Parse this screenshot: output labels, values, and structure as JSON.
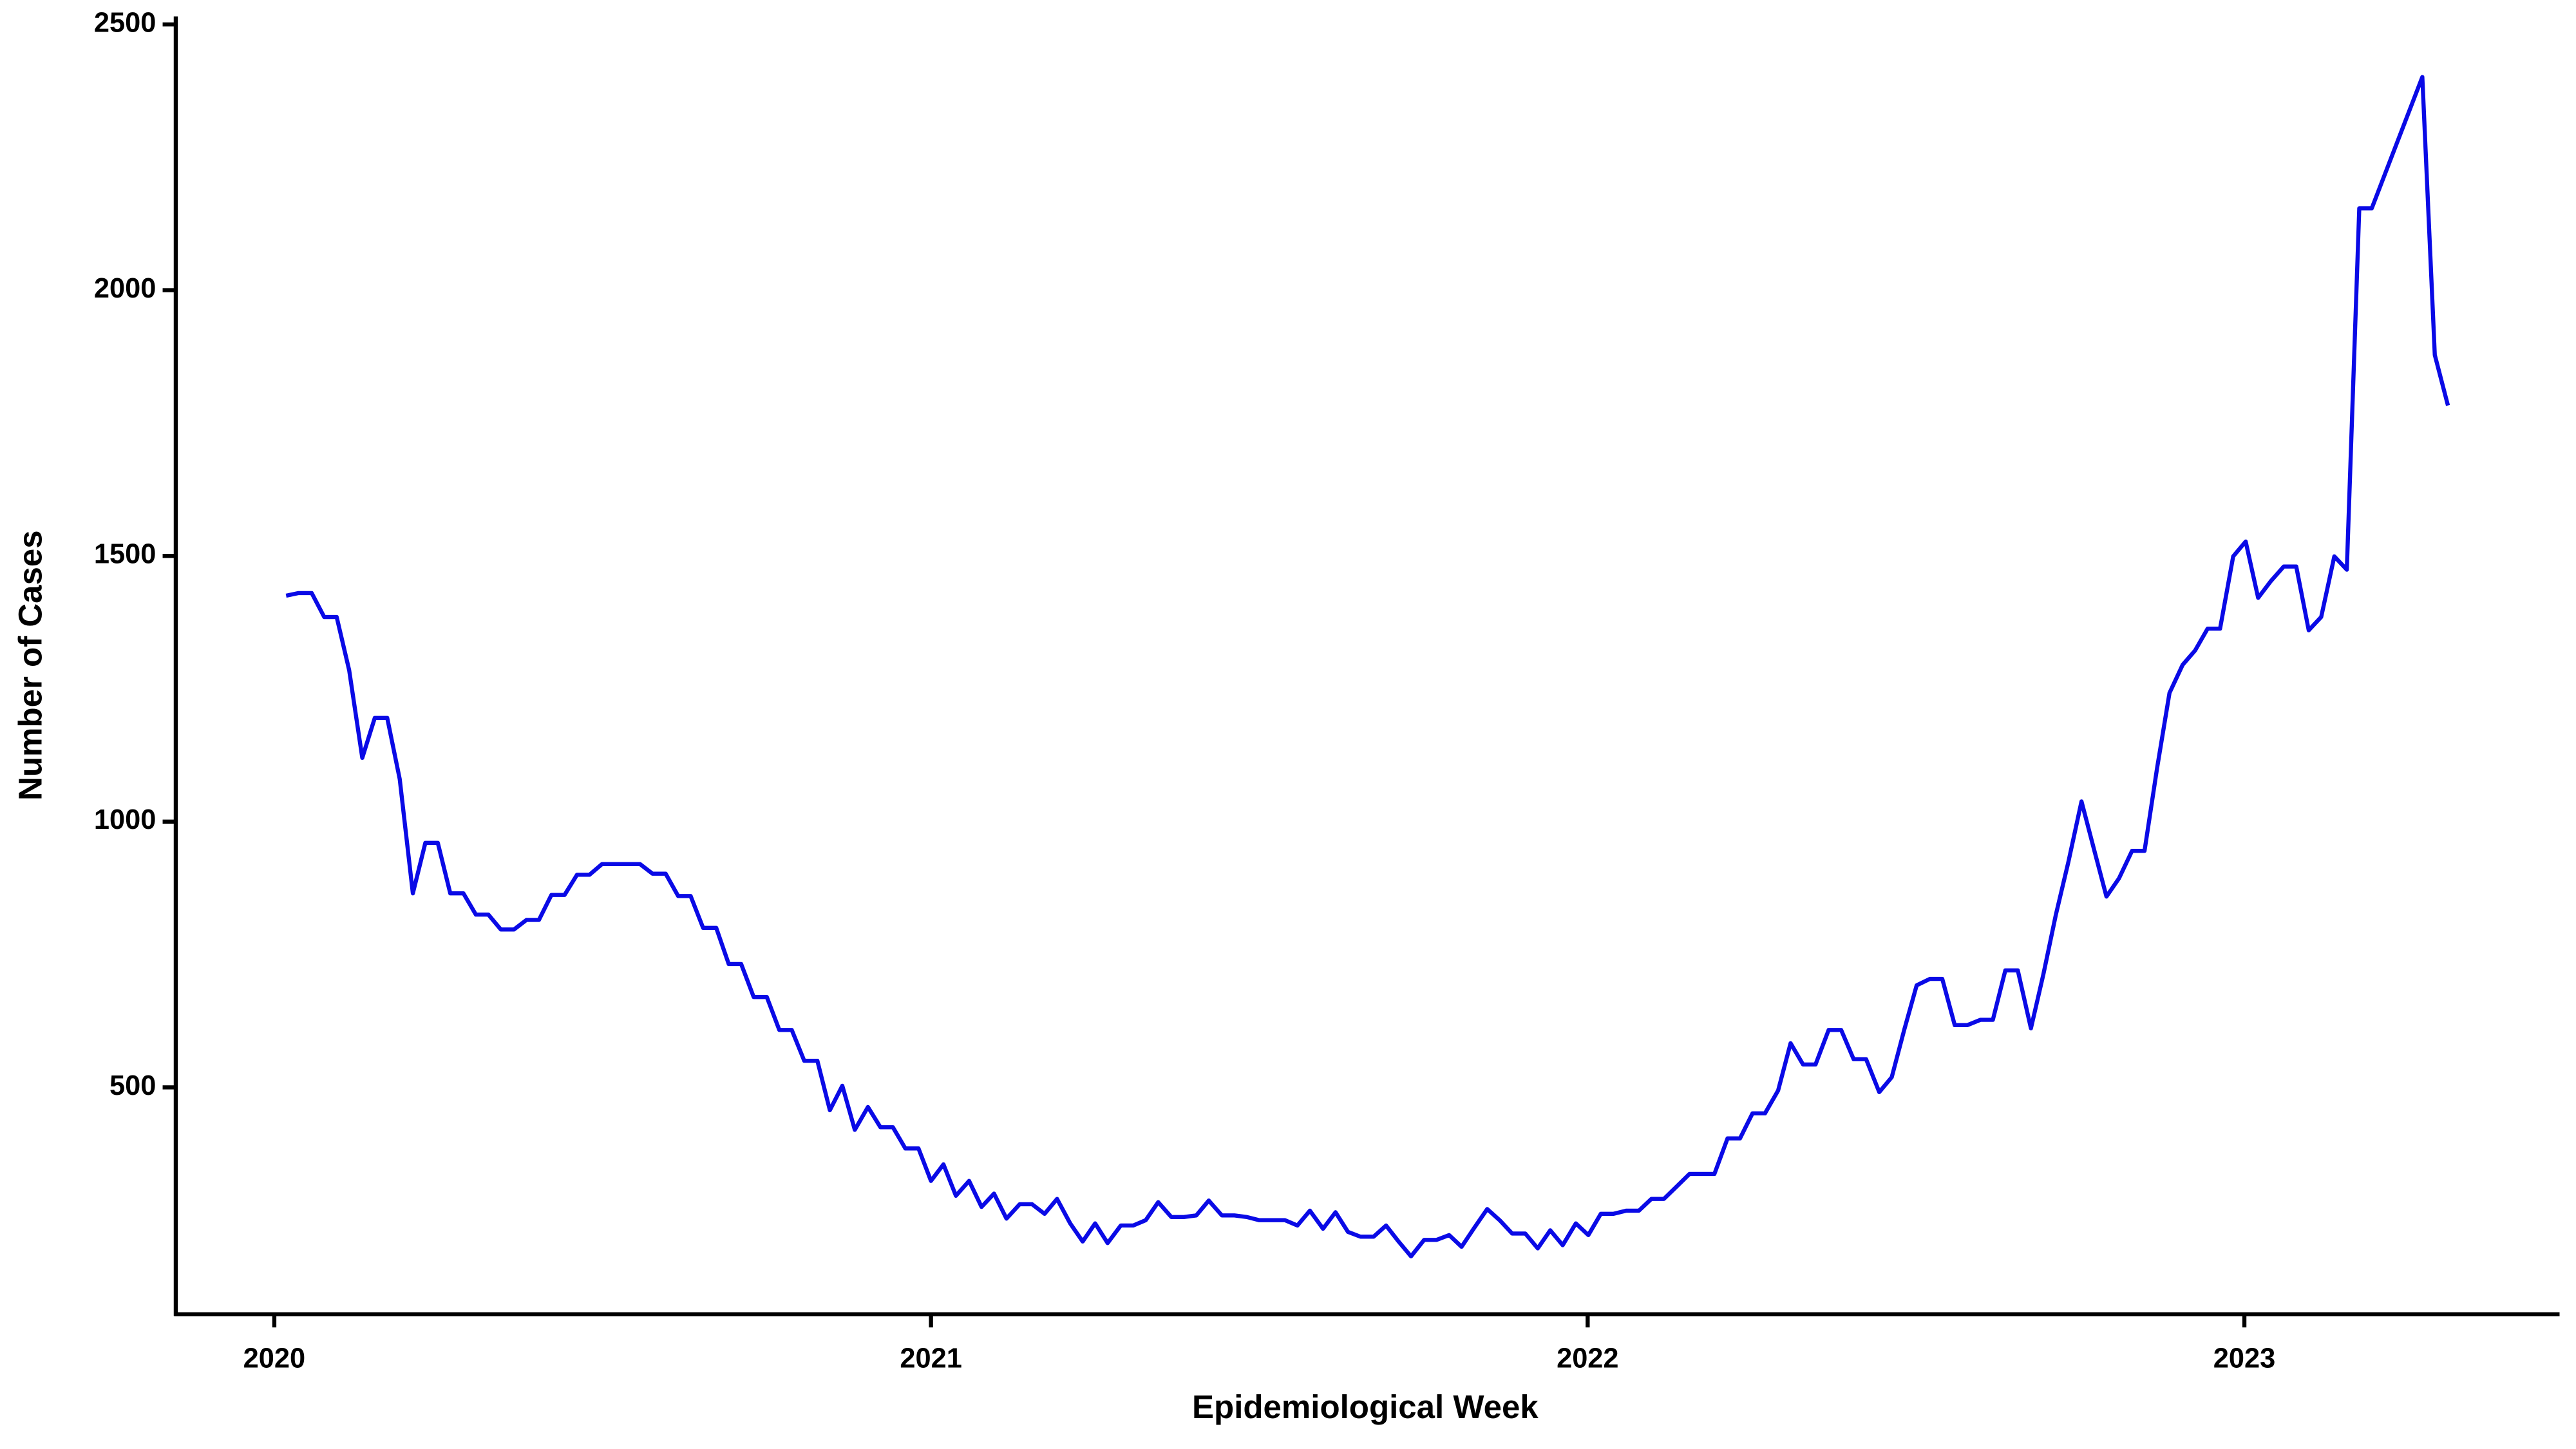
{
  "chart_data": {
    "type": "line",
    "x_label": "Epidemiological Week",
    "y_label": "Number of Cases",
    "color": "#0a0ae6",
    "xlim": [
      2019.85,
      2023.48
    ],
    "xticks": [
      2020,
      2021,
      2022,
      2023
    ],
    "ylim": [
      73,
      2515
    ],
    "yticks": [
      500,
      1000,
      1500,
      2000,
      2500
    ],
    "x": [
      2020.018,
      2020.037,
      2020.057,
      2020.076,
      2020.095,
      2020.114,
      2020.134,
      2020.153,
      2020.172,
      2020.191,
      2020.211,
      2020.23,
      2020.249,
      2020.268,
      2020.288,
      2020.307,
      2020.326,
      2020.345,
      2020.365,
      2020.384,
      2020.403,
      2020.422,
      2020.442,
      2020.461,
      2020.48,
      2020.499,
      2020.519,
      2020.538,
      2020.557,
      2020.576,
      2020.596,
      2020.615,
      2020.634,
      2020.653,
      2020.673,
      2020.692,
      2020.711,
      2020.73,
      2020.75,
      2020.769,
      2020.788,
      2020.807,
      2020.827,
      2020.846,
      2020.865,
      2020.884,
      2020.904,
      2020.923,
      2020.942,
      2020.961,
      2020.981,
      2021.0,
      2021.019,
      2021.038,
      2021.058,
      2021.077,
      2021.096,
      2021.115,
      2021.135,
      2021.154,
      2021.173,
      2021.192,
      2021.212,
      2021.231,
      2021.25,
      2021.269,
      2021.289,
      2021.308,
      2021.327,
      2021.346,
      2021.366,
      2021.385,
      2021.404,
      2021.423,
      2021.443,
      2021.462,
      2021.481,
      2021.5,
      2021.52,
      2021.539,
      2021.558,
      2021.577,
      2021.597,
      2021.616,
      2021.635,
      2021.654,
      2021.674,
      2021.693,
      2021.712,
      2021.731,
      2021.751,
      2021.77,
      2021.789,
      2021.808,
      2021.828,
      2021.847,
      2021.866,
      2021.885,
      2021.905,
      2021.924,
      2021.943,
      2021.962,
      2021.982,
      2022.001,
      2022.02,
      2022.039,
      2022.059,
      2022.078,
      2022.097,
      2022.116,
      2022.136,
      2022.155,
      2022.174,
      2022.193,
      2022.213,
      2022.232,
      2022.251,
      2022.27,
      2022.29,
      2022.309,
      2022.328,
      2022.347,
      2022.367,
      2022.386,
      2022.405,
      2022.424,
      2022.444,
      2022.463,
      2022.482,
      2022.501,
      2022.521,
      2022.54,
      2022.559,
      2022.578,
      2022.598,
      2022.617,
      2022.636,
      2022.655,
      2022.675,
      2022.694,
      2022.713,
      2022.732,
      2022.752,
      2022.771,
      2022.79,
      2022.809,
      2022.829,
      2022.848,
      2022.867,
      2022.886,
      2022.906,
      2022.925,
      2022.944,
      2022.963,
      2022.983,
      2023.002,
      2023.021,
      2023.04,
      2023.06,
      2023.079,
      2023.098,
      2023.117,
      2023.137,
      2023.156,
      2023.175,
      2023.194,
      2023.271,
      2023.29,
      2023.31
    ],
    "values": [
      1425,
      1430,
      1430,
      1385,
      1385,
      1285,
      1120,
      1195,
      1195,
      1080,
      865,
      960,
      960,
      865,
      865,
      825,
      825,
      797,
      797,
      815,
      815,
      862,
      862,
      900,
      900,
      920,
      920,
      920,
      920,
      902,
      902,
      860,
      860,
      800,
      800,
      732,
      732,
      670,
      670,
      608,
      608,
      550,
      550,
      457,
      503,
      420,
      463,
      425,
      425,
      385,
      385,
      324,
      355,
      296,
      324,
      275,
      300,
      253,
      280,
      280,
      262,
      290,
      244,
      210,
      244,
      207,
      240,
      240,
      250,
      284,
      256,
      256,
      259,
      287,
      259,
      259,
      256,
      250,
      250,
      250,
      240,
      268,
      234,
      265,
      228,
      219,
      219,
      240,
      210,
      182,
      213,
      213,
      222,
      200,
      237,
      271,
      250,
      225,
      225,
      197,
      231,
      203,
      244,
      222,
      262,
      262,
      268,
      268,
      290,
      290,
      314,
      337,
      337,
      337,
      404,
      404,
      451,
      451,
      494,
      583,
      543,
      543,
      608,
      608,
      553,
      553,
      491,
      519,
      608,
      692,
      704,
      704,
      617,
      617,
      627,
      627,
      720,
      720,
      611,
      713,
      825,
      924,
      1038,
      948,
      859,
      893,
      945,
      945,
      1100,
      1242,
      1295,
      1322,
      1363,
      1363,
      1499,
      1527,
      1421,
      1452,
      1480,
      1480,
      1360,
      1385,
      1499,
      1474,
      2154,
      2154,
      2401,
      1878,
      1783
    ]
  }
}
